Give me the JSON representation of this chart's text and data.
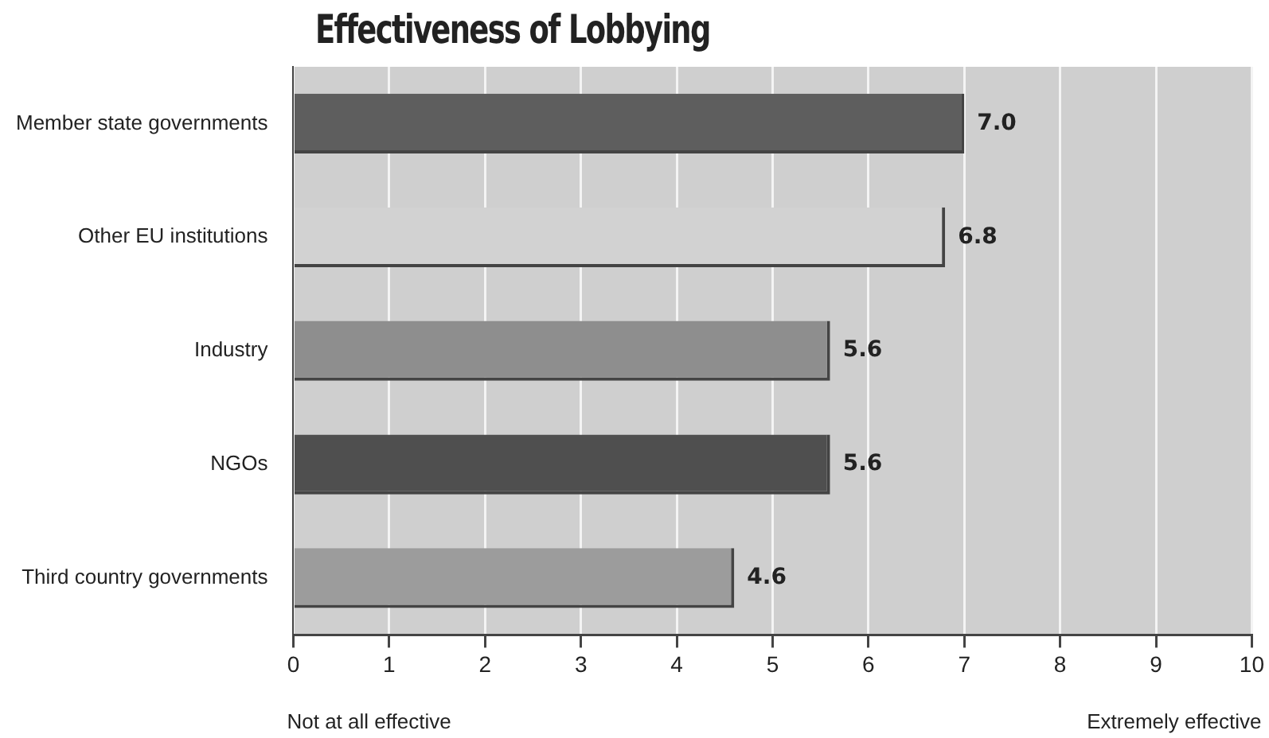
{
  "chart_data": {
    "type": "bar",
    "orientation": "horizontal",
    "title": "Effectiveness of Lobbying",
    "categories": [
      "Member state governments",
      "Other EU institutions",
      "Industry",
      "NGOs",
      "Third country governments"
    ],
    "values": [
      7.0,
      6.8,
      5.6,
      5.6,
      4.6
    ],
    "value_labels": [
      "7.0",
      "6.8",
      "5.6",
      "5.6",
      "4.6"
    ],
    "colors": [
      "#5e5e5e",
      "#d2d2d2",
      "#8e8e8e",
      "#4f4f4f",
      "#9c9c9c"
    ],
    "xlim": [
      0,
      10
    ],
    "xticks": [
      0,
      1,
      2,
      3,
      4,
      5,
      6,
      7,
      8,
      9,
      10
    ],
    "grid": "x",
    "legend": false,
    "annotations": [
      "Not at all effective",
      "Extremely effective"
    ]
  }
}
